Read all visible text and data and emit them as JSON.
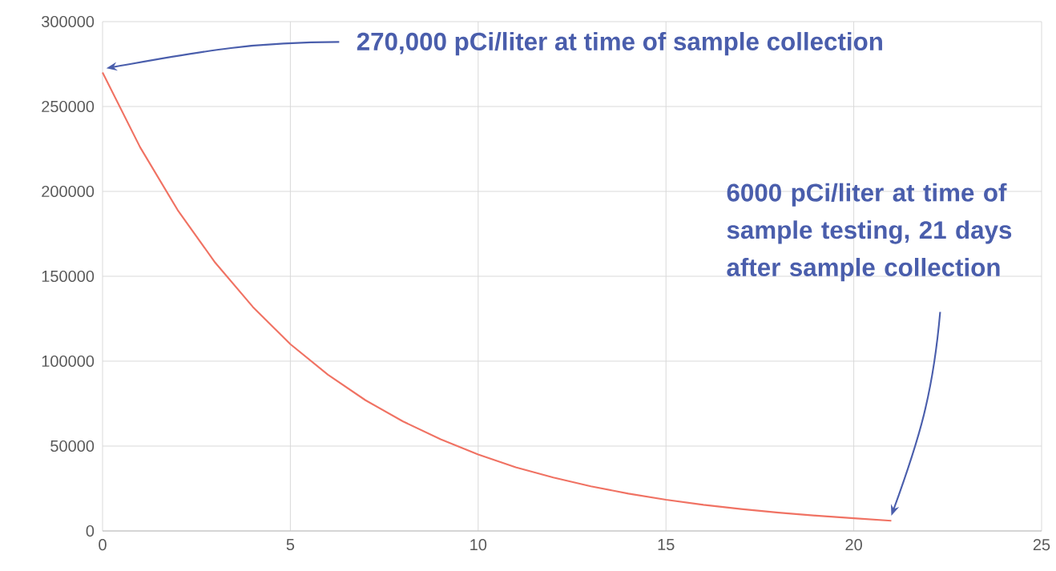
{
  "chart_data": {
    "type": "line",
    "color": "#f07263",
    "x": [
      0,
      1,
      2,
      3,
      4,
      5,
      6,
      7,
      8,
      9,
      10,
      11,
      12,
      13,
      14,
      15,
      16,
      17,
      18,
      19,
      20,
      21
    ],
    "values": [
      270000,
      226000,
      189000,
      158000,
      132000,
      110000,
      92000,
      77000,
      64500,
      54000,
      45000,
      37500,
      31500,
      26300,
      22000,
      18400,
      15400,
      12900,
      10800,
      9000,
      7500,
      6000
    ],
    "xlim": [
      0,
      25
    ],
    "xticks": [
      0,
      5,
      10,
      15,
      20,
      25
    ],
    "ylim": [
      0,
      300000
    ],
    "yticks": [
      0,
      50000,
      100000,
      150000,
      200000,
      250000,
      300000
    ],
    "grid": true,
    "annotations": [
      "270,000 pCi/liter at time of sample collection",
      "6000 pCi/liter at time of sample testing, 21 days after sample collection"
    ]
  }
}
